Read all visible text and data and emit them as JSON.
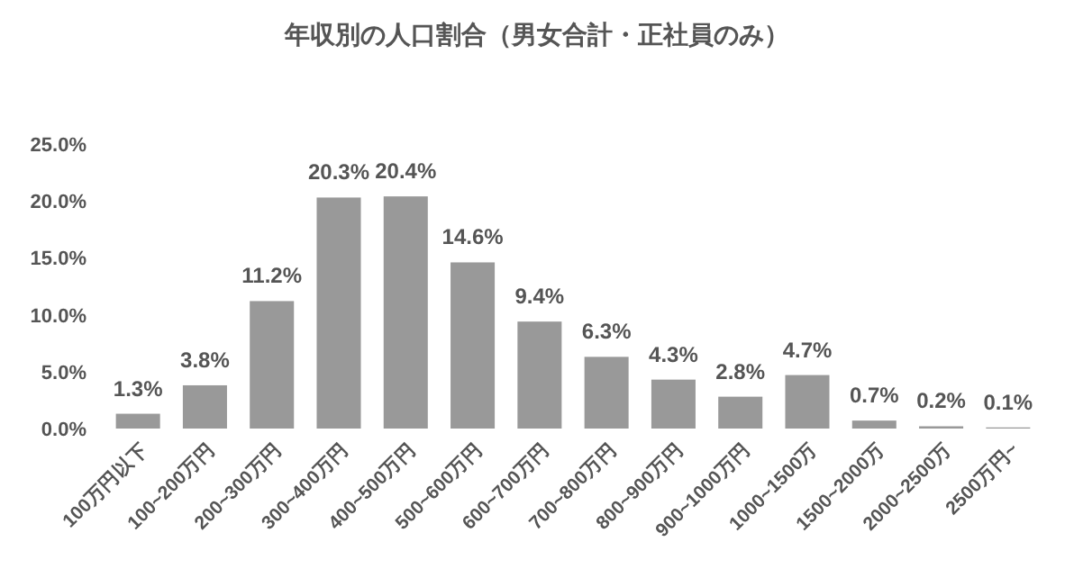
{
  "chart_data": {
    "type": "bar",
    "title": "年収別の人口割合（男女合計・正社員のみ）",
    "categories": [
      "100万円以下",
      "100~200万円",
      "200~300万円",
      "300~400万円",
      "400~500万円",
      "500~600万円",
      "600~700万円",
      "700~800万円",
      "800~900万円",
      "900~1000万円",
      "1000~1500万",
      "1500~2000万",
      "2000~2500万",
      "2500万円~"
    ],
    "values": [
      1.3,
      3.8,
      11.2,
      20.3,
      20.4,
      14.6,
      9.4,
      6.3,
      4.3,
      2.8,
      4.7,
      0.7,
      0.2,
      0.1
    ],
    "value_labels": [
      "1.3%",
      "3.8%",
      "11.2%",
      "20.3%",
      "20.4%",
      "14.6%",
      "9.4%",
      "6.3%",
      "4.3%",
      "2.8%",
      "4.7%",
      "0.7%",
      "0.2%",
      "0.1%"
    ],
    "color": "#999999",
    "ylim": [
      0,
      25
    ],
    "yticks": [
      {
        "value": 0,
        "label": "0.0%"
      },
      {
        "value": 5,
        "label": "5.0%"
      },
      {
        "value": 10,
        "label": "10.0%"
      },
      {
        "value": 15,
        "label": "15.0%"
      },
      {
        "value": 20,
        "label": "20.0%"
      },
      {
        "value": 25,
        "label": "25.0%"
      }
    ],
    "grid": false
  }
}
